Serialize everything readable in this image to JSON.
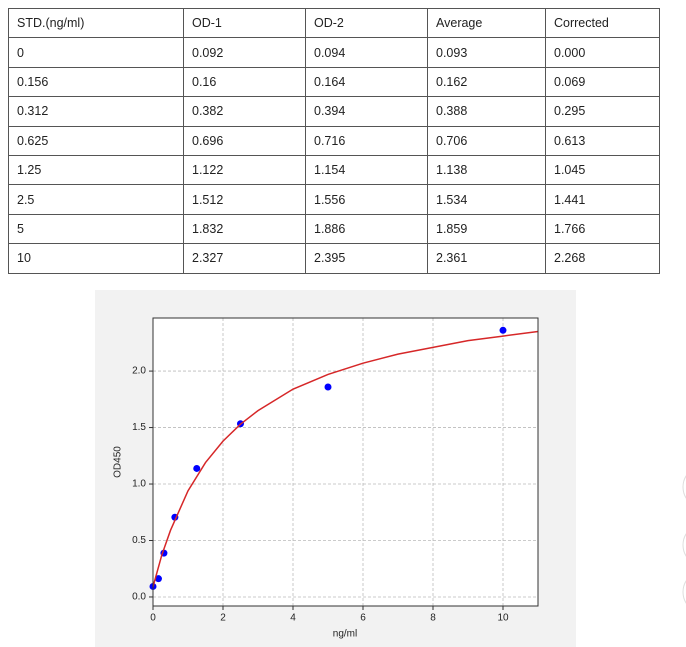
{
  "table": {
    "header": [
      "STD.(ng/ml)",
      "OD-1",
      "OD-2",
      "Average",
      "Corrected"
    ],
    "rows": [
      [
        "0",
        "0.092",
        "0.094",
        "0.093",
        "0.000"
      ],
      [
        "0.156",
        "0.16",
        "0.164",
        "0.162",
        "0.069"
      ],
      [
        "0.312",
        "0.382",
        "0.394",
        "0.388",
        "0.295"
      ],
      [
        "0.625",
        "0.696",
        "0.716",
        "0.706",
        "0.613"
      ],
      [
        "1.25",
        "1.122",
        "1.154",
        "1.138",
        "1.045"
      ],
      [
        "2.5",
        "1.512",
        "1.556",
        "1.534",
        "1.441"
      ],
      [
        "5",
        "1.832",
        "1.886",
        "1.859",
        "1.766"
      ],
      [
        "10",
        "2.327",
        "2.395",
        "2.361",
        "2.268"
      ]
    ]
  },
  "chart_data": {
    "type": "scatter",
    "x_label": "ng/ml",
    "y_label": "OD450",
    "series": [
      {
        "color": "#0000ff",
        "x": [
          0,
          0.156,
          0.312,
          0.625,
          1.25,
          2.5,
          5,
          10
        ],
        "values": [
          0.093,
          0.162,
          0.388,
          0.706,
          1.138,
          1.534,
          1.859,
          2.361
        ]
      },
      {
        "color": "#d62728",
        "style": "line",
        "x": [
          0,
          0.25,
          0.5,
          1,
          1.5,
          2,
          2.5,
          3,
          4,
          5,
          6,
          7,
          8,
          9,
          10,
          11
        ],
        "values": [
          0.09,
          0.37,
          0.59,
          0.94,
          1.19,
          1.38,
          1.53,
          1.65,
          1.84,
          1.97,
          2.07,
          2.15,
          2.21,
          2.27,
          2.31,
          2.35
        ]
      }
    ],
    "xlim": [
      0,
      11
    ],
    "ylim": [
      -0.08,
      2.47
    ],
    "xticks": [
      0,
      2,
      4,
      6,
      8,
      10
    ],
    "yticks": [
      {
        "value": 0,
        "label": "0.0"
      },
      0.5,
      {
        "value": 1,
        "label": "1.0"
      },
      1.5,
      {
        "value": 2,
        "label": "2.0"
      }
    ],
    "grid": true
  }
}
